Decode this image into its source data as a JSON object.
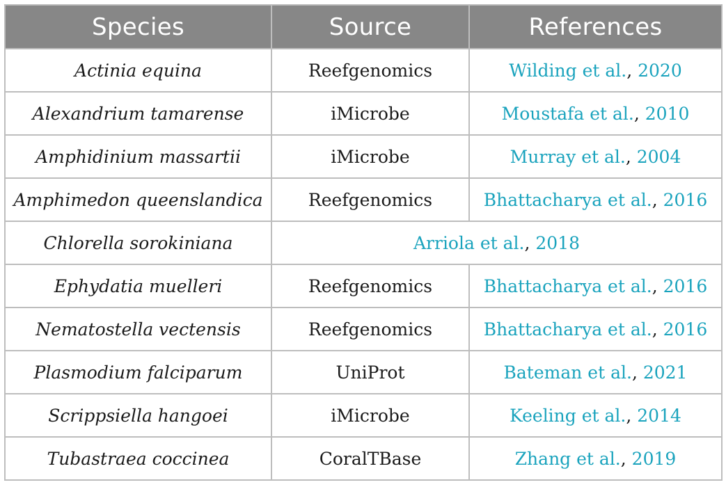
{
  "table": {
    "headers": {
      "species": "Species",
      "source": "Source",
      "references": "References"
    },
    "rows": [
      {
        "species": "Actinia equina",
        "source": "Reefgenomics",
        "ref_authors": "Wilding et al.",
        "ref_sep": ", ",
        "ref_year": "2020"
      },
      {
        "species": "Alexandrium tamarense",
        "source": "iMicrobe",
        "ref_authors": "Moustafa et al.",
        "ref_sep": ", ",
        "ref_year": "2010"
      },
      {
        "species": "Amphidinium massartii",
        "source": "iMicrobe",
        "ref_authors": "Murray et al.",
        "ref_sep": ", ",
        "ref_year": "2004"
      },
      {
        "species": "Amphimedon queenslandica",
        "source": "Reefgenomics",
        "ref_authors": "Bhattacharya et al.",
        "ref_sep": ", ",
        "ref_year": "2016"
      },
      {
        "species": "Chlorella sorokiniana",
        "source": "",
        "ref_authors": "Arriola et al.",
        "ref_sep": ", ",
        "ref_year": "2018"
      },
      {
        "species": "Ephydatia muelleri",
        "source": "Reefgenomics",
        "ref_authors": "Bhattacharya et al.",
        "ref_sep": ", ",
        "ref_year": "2016"
      },
      {
        "species": "Nematostella vectensis",
        "source": "Reefgenomics",
        "ref_authors": "Bhattacharya et al.",
        "ref_sep": ", ",
        "ref_year": "2016"
      },
      {
        "species": "Plasmodium falciparum",
        "source": "UniProt",
        "ref_authors": "Bateman et al.",
        "ref_sep": ", ",
        "ref_year": "2021"
      },
      {
        "species": "Scrippsiella hangoei",
        "source": "iMicrobe",
        "ref_authors": "Keeling et al.",
        "ref_sep": ", ",
        "ref_year": "2014"
      },
      {
        "species": "Tubastraea coccinea",
        "source": "CoralTBase",
        "ref_authors": "Zhang et al.",
        "ref_sep": ", ",
        "ref_year": "2019"
      }
    ]
  },
  "colors": {
    "header_bg": "#878787",
    "header_text": "#ffffff",
    "border": "#bdbdbd",
    "link": "#1aa3bd",
    "body_text": "#1a1a1a"
  }
}
